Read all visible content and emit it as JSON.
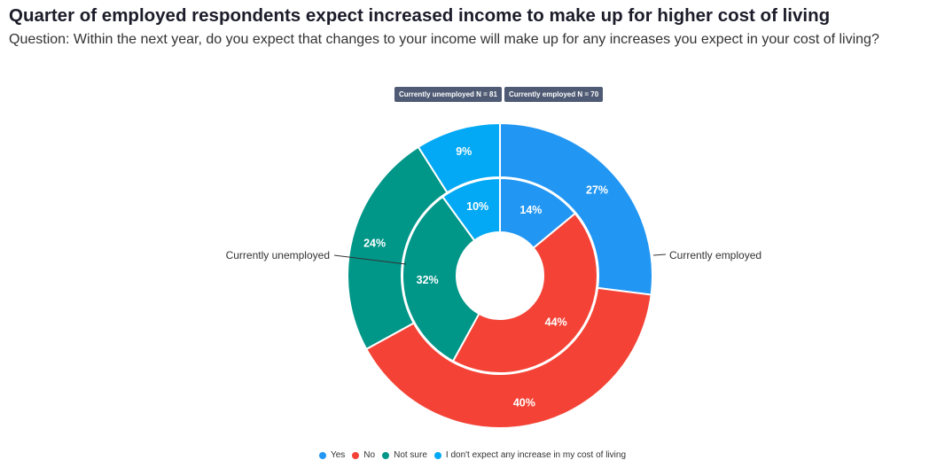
{
  "chart_data": {
    "type": "pie",
    "title": "Quarter of employed respondents expect increased income to make up for higher cost of living",
    "subtitle": "Question: Within the next year, do you expect that changes to your income will make up for any increases you expect in your cost of living?",
    "categories": [
      "Yes",
      "No",
      "Not sure",
      "I don't expect any increase in my cost of living"
    ],
    "colors": [
      "#2196f3",
      "#f44336",
      "#009688",
      "#03a9f4"
    ],
    "series": [
      {
        "name": "Currently employed",
        "ring": "outer",
        "n_label": "Currently employed N = 70",
        "values": [
          27,
          40,
          24,
          9
        ],
        "labels": [
          "27%",
          "40%",
          "24%",
          "9%"
        ]
      },
      {
        "name": "Currently unemployed",
        "ring": "inner",
        "n_label": "Currently unemployed N = 81",
        "values": [
          14,
          44,
          32,
          10
        ],
        "labels": [
          "14%",
          "44%",
          "32%",
          "10%"
        ]
      }
    ],
    "legend_position": "bottom-center"
  }
}
